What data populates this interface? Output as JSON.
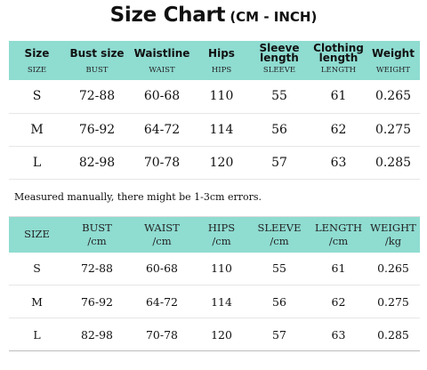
{
  "title": {
    "main": "Size Chart",
    "units": "(CM - INCH)"
  },
  "table1": {
    "headers": [
      {
        "label": "Size",
        "sub": "SIZE"
      },
      {
        "label": "Bust size",
        "sub": "BUST"
      },
      {
        "label": "Waistline",
        "sub": "WAIST"
      },
      {
        "label": "Hips",
        "sub": "HIPS"
      },
      {
        "label_line1": "Sleeve",
        "label_line2": "length",
        "sub": "SLEEVE"
      },
      {
        "label_line1": "Clothing",
        "label_line2": "length",
        "sub": "LENGTH"
      },
      {
        "label": "Weight",
        "sub": "WEIGHT"
      }
    ],
    "rows": [
      [
        "S",
        "72-88",
        "60-68",
        "110",
        "55",
        "61",
        "0.265"
      ],
      [
        "M",
        "76-92",
        "64-72",
        "114",
        "56",
        "62",
        "0.275"
      ],
      [
        "L",
        "82-98",
        "70-78",
        "120",
        "57",
        "63",
        "0.285"
      ]
    ]
  },
  "note": "Measured manually, there might be 1-3cm errors.",
  "table2": {
    "headers": [
      {
        "line1": "SIZE",
        "line2": ""
      },
      {
        "line1": "BUST",
        "line2": "/cm"
      },
      {
        "line1": "WAIST",
        "line2": "/cm"
      },
      {
        "line1": "HIPS",
        "line2": "/cm"
      },
      {
        "line1": "SLEEVE",
        "line2": "/cm"
      },
      {
        "line1": "LENGTH",
        "line2": "/cm"
      },
      {
        "line1": "WEIGHT",
        "line2": "/kg"
      }
    ],
    "rows": [
      [
        "S",
        "72-88",
        "60-68",
        "110",
        "55",
        "61",
        "0.265"
      ],
      [
        "M",
        "76-92",
        "64-72",
        "114",
        "56",
        "62",
        "0.275"
      ],
      [
        "L",
        "82-98",
        "70-78",
        "120",
        "57",
        "63",
        "0.285"
      ]
    ]
  },
  "colors": {
    "header_bg": "#8fdcd1",
    "accent_text": "#2f7a70"
  }
}
